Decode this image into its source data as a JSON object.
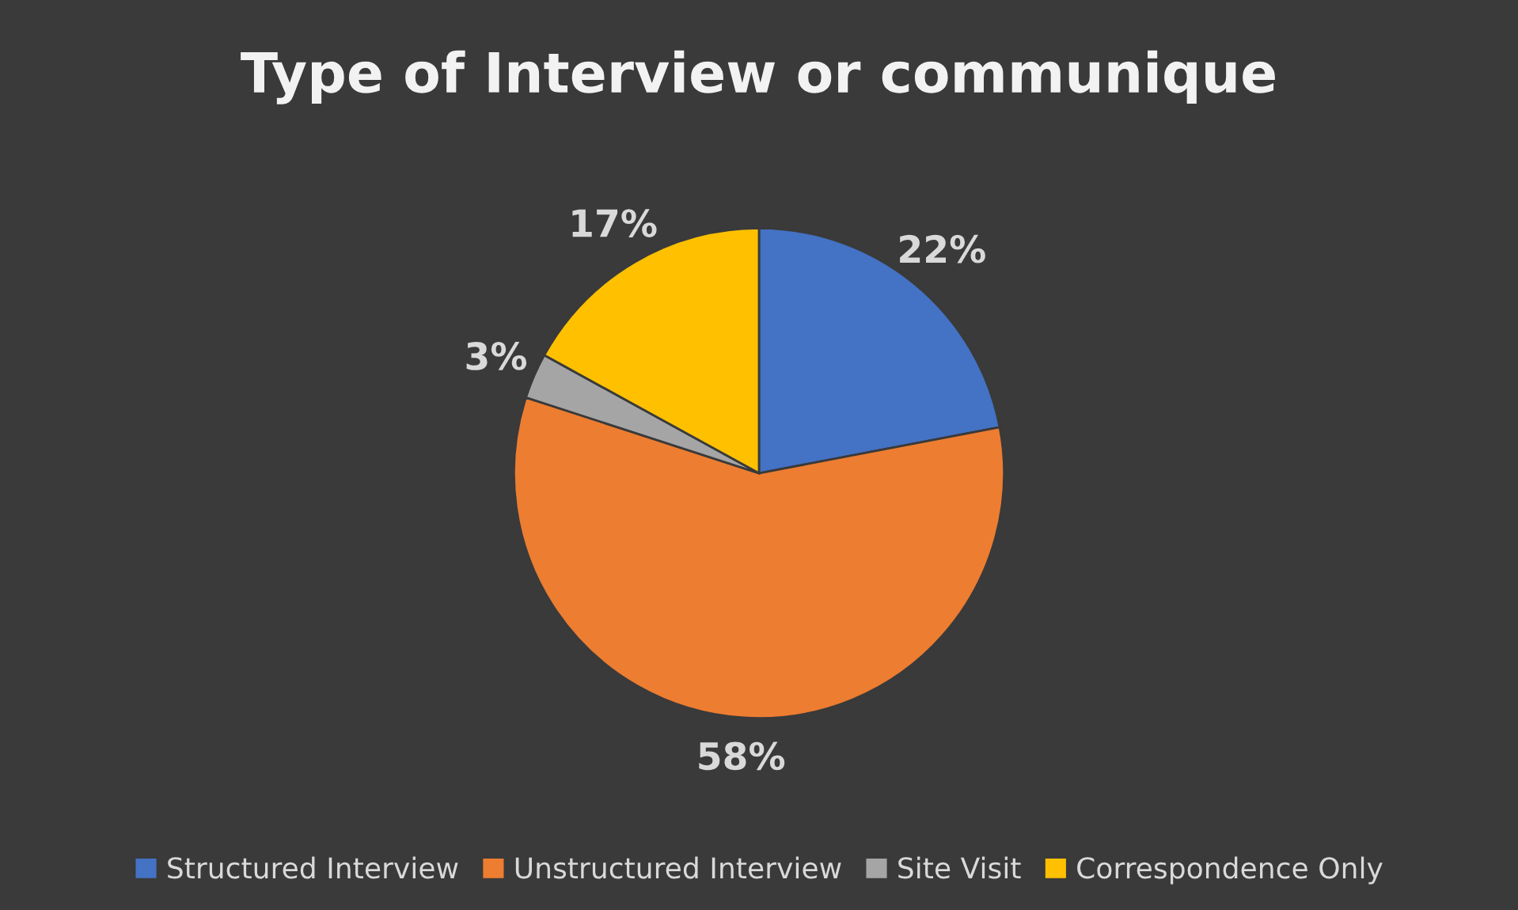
{
  "chart_data": {
    "type": "pie",
    "title": "Type of Interview or communique",
    "categories": [
      "Structured Interview",
      "Unstructured Interview",
      "Site Visit",
      "Correspondence Only"
    ],
    "values": [
      22,
      58,
      3,
      17
    ],
    "colors": [
      "#4472c4",
      "#ed7d31",
      "#a5a5a5",
      "#ffc000"
    ],
    "value_labels": [
      "22%",
      "58%",
      "3%",
      "17%"
    ],
    "legend": "bottom"
  }
}
